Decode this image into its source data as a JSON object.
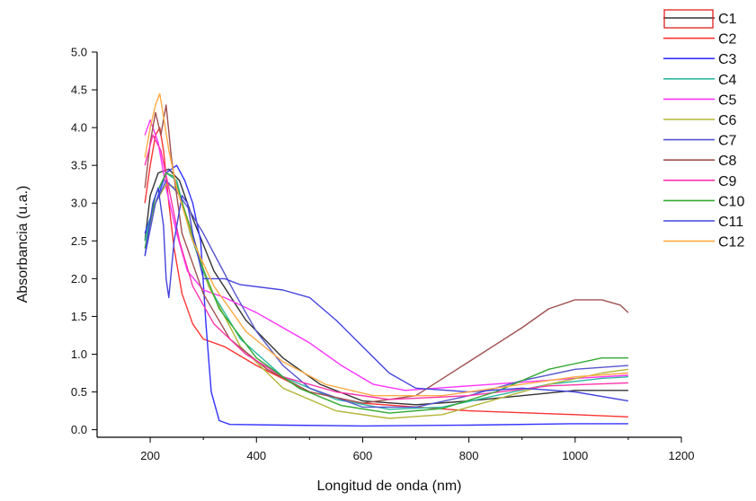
{
  "chart_data": {
    "type": "line",
    "title": "",
    "xlabel": "Longitud de onda (nm)",
    "ylabel": "Absorbancia (u.a.)",
    "xlim": [
      100,
      1200
    ],
    "ylim": [
      -0.1,
      5.0
    ],
    "xticks": [
      "200",
      "400",
      "600",
      "800",
      "1000",
      "1200"
    ],
    "yticks": [
      "0.0",
      "0.5",
      "1.0",
      "1.5",
      "2.0",
      "2.5",
      "3.0",
      "3.5",
      "4.0",
      "4.5",
      "5.0"
    ],
    "grid": false,
    "legend": "top-right",
    "series": [
      {
        "name": "C1",
        "color": "#333333",
        "points": [
          [
            190,
            2.5
          ],
          [
            200,
            3.1
          ],
          [
            215,
            3.4
          ],
          [
            235,
            3.45
          ],
          [
            255,
            3.3
          ],
          [
            280,
            2.8
          ],
          [
            320,
            2.1
          ],
          [
            380,
            1.45
          ],
          [
            450,
            0.95
          ],
          [
            520,
            0.6
          ],
          [
            600,
            0.38
          ],
          [
            700,
            0.33
          ],
          [
            800,
            0.38
          ],
          [
            900,
            0.45
          ],
          [
            1000,
            0.52
          ],
          [
            1100,
            0.52
          ]
        ]
      },
      {
        "name": "C2",
        "color": "#ff3333",
        "points": [
          [
            190,
            3.0
          ],
          [
            200,
            3.5
          ],
          [
            210,
            3.9
          ],
          [
            218,
            4.0
          ],
          [
            225,
            3.7
          ],
          [
            235,
            3.0
          ],
          [
            245,
            2.4
          ],
          [
            260,
            1.8
          ],
          [
            280,
            1.4
          ],
          [
            300,
            1.2
          ],
          [
            340,
            1.1
          ],
          [
            400,
            0.85
          ],
          [
            500,
            0.5
          ],
          [
            600,
            0.35
          ],
          [
            800,
            0.25
          ],
          [
            1000,
            0.2
          ],
          [
            1100,
            0.17
          ]
        ]
      },
      {
        "name": "C3",
        "color": "#3333ff",
        "points": [
          [
            190,
            2.6
          ],
          [
            210,
            3.0
          ],
          [
            230,
            3.4
          ],
          [
            250,
            3.5
          ],
          [
            265,
            3.3
          ],
          [
            280,
            3.0
          ],
          [
            295,
            2.5
          ],
          [
            305,
            1.4
          ],
          [
            315,
            0.5
          ],
          [
            330,
            0.12
          ],
          [
            350,
            0.07
          ],
          [
            450,
            0.06
          ],
          [
            600,
            0.05
          ],
          [
            800,
            0.06
          ],
          [
            1000,
            0.08
          ],
          [
            1100,
            0.08
          ]
        ]
      },
      {
        "name": "C4",
        "color": "#2eb8a0",
        "points": [
          [
            190,
            2.5
          ],
          [
            210,
            3.1
          ],
          [
            230,
            3.4
          ],
          [
            250,
            3.3
          ],
          [
            275,
            2.6
          ],
          [
            310,
            1.9
          ],
          [
            370,
            1.2
          ],
          [
            450,
            0.7
          ],
          [
            550,
            0.4
          ],
          [
            650,
            0.27
          ],
          [
            750,
            0.3
          ],
          [
            850,
            0.45
          ],
          [
            950,
            0.6
          ],
          [
            1050,
            0.68
          ],
          [
            1100,
            0.7
          ]
        ]
      },
      {
        "name": "C5",
        "color": "#ff33ff",
        "points": [
          [
            190,
            3.9
          ],
          [
            200,
            4.1
          ],
          [
            215,
            3.8
          ],
          [
            230,
            3.2
          ],
          [
            250,
            2.6
          ],
          [
            270,
            2.1
          ],
          [
            300,
            1.85
          ],
          [
            340,
            1.75
          ],
          [
            400,
            1.55
          ],
          [
            450,
            1.35
          ],
          [
            500,
            1.15
          ],
          [
            560,
            0.85
          ],
          [
            620,
            0.6
          ],
          [
            680,
            0.52
          ],
          [
            800,
            0.58
          ],
          [
            1000,
            0.68
          ],
          [
            1100,
            0.72
          ]
        ]
      },
      {
        "name": "C6",
        "color": "#b5b53a",
        "points": [
          [
            190,
            2.4
          ],
          [
            210,
            3.0
          ],
          [
            230,
            3.25
          ],
          [
            250,
            3.2
          ],
          [
            275,
            2.7
          ],
          [
            310,
            1.9
          ],
          [
            370,
            1.1
          ],
          [
            450,
            0.55
          ],
          [
            550,
            0.25
          ],
          [
            650,
            0.15
          ],
          [
            750,
            0.2
          ],
          [
            850,
            0.4
          ],
          [
            950,
            0.6
          ],
          [
            1050,
            0.75
          ],
          [
            1100,
            0.8
          ]
        ]
      },
      {
        "name": "C7",
        "color": "#5555cc",
        "points": [
          [
            190,
            2.3
          ],
          [
            210,
            3.0
          ],
          [
            230,
            3.3
          ],
          [
            250,
            3.15
          ],
          [
            270,
            2.95
          ],
          [
            300,
            2.6
          ],
          [
            330,
            2.2
          ],
          [
            360,
            1.8
          ],
          [
            400,
            1.3
          ],
          [
            450,
            0.85
          ],
          [
            500,
            0.55
          ],
          [
            600,
            0.3
          ],
          [
            700,
            0.3
          ],
          [
            800,
            0.45
          ],
          [
            900,
            0.65
          ],
          [
            1000,
            0.8
          ],
          [
            1100,
            0.85
          ]
        ]
      },
      {
        "name": "C8",
        "color": "#a05050",
        "points": [
          [
            190,
            3.2
          ],
          [
            200,
            3.8
          ],
          [
            210,
            4.2
          ],
          [
            220,
            3.9
          ],
          [
            230,
            4.3
          ],
          [
            240,
            3.6
          ],
          [
            260,
            2.6
          ],
          [
            300,
            1.8
          ],
          [
            350,
            1.2
          ],
          [
            420,
            0.8
          ],
          [
            500,
            0.5
          ],
          [
            600,
            0.35
          ],
          [
            700,
            0.45
          ],
          [
            800,
            0.9
          ],
          [
            900,
            1.35
          ],
          [
            950,
            1.6
          ],
          [
            1000,
            1.72
          ],
          [
            1050,
            1.72
          ],
          [
            1085,
            1.65
          ],
          [
            1100,
            1.55
          ]
        ]
      },
      {
        "name": "C9",
        "color": "#ff33aa",
        "points": [
          [
            190,
            3.5
          ],
          [
            205,
            3.9
          ],
          [
            220,
            3.7
          ],
          [
            235,
            3.2
          ],
          [
            255,
            2.5
          ],
          [
            280,
            1.9
          ],
          [
            320,
            1.4
          ],
          [
            380,
            1.0
          ],
          [
            450,
            0.7
          ],
          [
            550,
            0.5
          ],
          [
            650,
            0.4
          ],
          [
            800,
            0.45
          ],
          [
            950,
            0.58
          ],
          [
            1100,
            0.62
          ]
        ]
      },
      {
        "name": "C10",
        "color": "#33aa33",
        "points": [
          [
            190,
            2.4
          ],
          [
            210,
            3.1
          ],
          [
            230,
            3.4
          ],
          [
            245,
            3.35
          ],
          [
            265,
            2.9
          ],
          [
            290,
            2.3
          ],
          [
            330,
            1.6
          ],
          [
            400,
            0.95
          ],
          [
            480,
            0.55
          ],
          [
            560,
            0.32
          ],
          [
            650,
            0.22
          ],
          [
            750,
            0.28
          ],
          [
            850,
            0.5
          ],
          [
            950,
            0.8
          ],
          [
            1050,
            0.95
          ],
          [
            1100,
            0.95
          ]
        ]
      },
      {
        "name": "C11",
        "color": "#4444dd",
        "points": [
          [
            190,
            2.3
          ],
          [
            205,
            3.0
          ],
          [
            215,
            3.2
          ],
          [
            225,
            2.7
          ],
          [
            230,
            2.0
          ],
          [
            235,
            1.75
          ],
          [
            245,
            2.5
          ],
          [
            260,
            3.1
          ],
          [
            270,
            3.0
          ],
          [
            280,
            2.6
          ],
          [
            300,
            2.0
          ],
          [
            340,
            2.0
          ],
          [
            370,
            1.92
          ],
          [
            450,
            1.85
          ],
          [
            500,
            1.75
          ],
          [
            550,
            1.45
          ],
          [
            600,
            1.1
          ],
          [
            650,
            0.75
          ],
          [
            700,
            0.55
          ],
          [
            800,
            0.5
          ],
          [
            900,
            0.55
          ],
          [
            1000,
            0.5
          ],
          [
            1100,
            0.38
          ]
        ]
      },
      {
        "name": "C12",
        "color": "#ffaa44",
        "points": [
          [
            190,
            3.6
          ],
          [
            200,
            4.0
          ],
          [
            210,
            4.3
          ],
          [
            218,
            4.45
          ],
          [
            226,
            4.1
          ],
          [
            235,
            3.7
          ],
          [
            250,
            3.2
          ],
          [
            280,
            2.5
          ],
          [
            320,
            1.9
          ],
          [
            380,
            1.3
          ],
          [
            450,
            0.9
          ],
          [
            530,
            0.6
          ],
          [
            620,
            0.45
          ],
          [
            750,
            0.45
          ],
          [
            900,
            0.6
          ],
          [
            1000,
            0.7
          ],
          [
            1100,
            0.75
          ]
        ]
      }
    ]
  }
}
